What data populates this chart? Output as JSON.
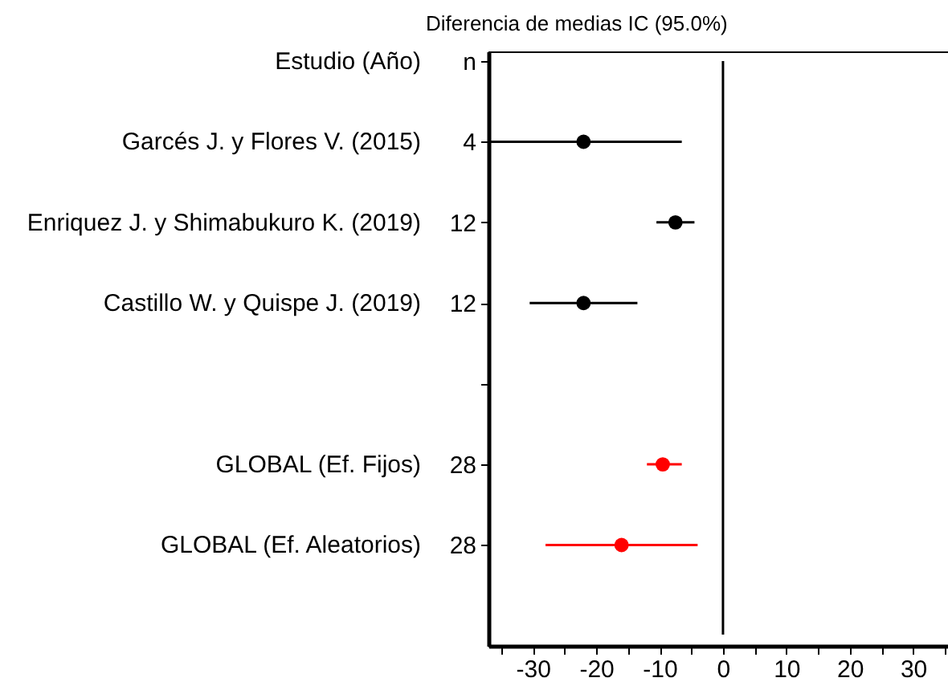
{
  "chart_data": {
    "type": "scatter",
    "orientation": "horizontal",
    "title": "Diferencia de medias IC (95.0%)",
    "categories": [
      "Estudio (Año)",
      "Garcés J. y Flores V. (2015)",
      "Enriquez J. y Shimabukuro K. (2019)",
      "Castillo W. y Quispe J. (2019)",
      null,
      "GLOBAL (Ef. Fijos)",
      "GLOBAL (Ef. Aleatorios)"
    ],
    "y2_categories": [
      "n",
      "4",
      "12",
      "12",
      null,
      "28",
      "28"
    ],
    "values": [
      null,
      -22,
      -7.5,
      -22,
      null,
      -9.5,
      -16
    ],
    "errors": [
      null,
      [
        -37,
        -6.5
      ],
      [
        -10.5,
        -4.5
      ],
      [
        -30.5,
        -13.5
      ],
      null,
      [
        -12,
        -6.5
      ],
      [
        -28,
        -4
      ]
    ],
    "colors": [
      "#000000",
      "#000000",
      "#000000",
      "#000000",
      "#000000",
      "#ff0000",
      "#ff0000"
    ],
    "marker": "circle",
    "xlim": [
      -37,
      35.5
    ],
    "xticks": [
      {
        "value": -35,
        "label": null
      },
      -30,
      {
        "value": -25,
        "label": null
      },
      -20,
      {
        "value": -15,
        "label": null
      },
      -10,
      {
        "value": -5,
        "label": null
      },
      0,
      {
        "value": 5,
        "label": null
      },
      10,
      {
        "value": 15,
        "label": null
      },
      20,
      {
        "value": 25,
        "label": null
      },
      30,
      {
        "value": 35,
        "label": null
      }
    ],
    "ref_lines": [
      {
        "axis": "x",
        "value": 0,
        "color": "#000000"
      }
    ]
  }
}
